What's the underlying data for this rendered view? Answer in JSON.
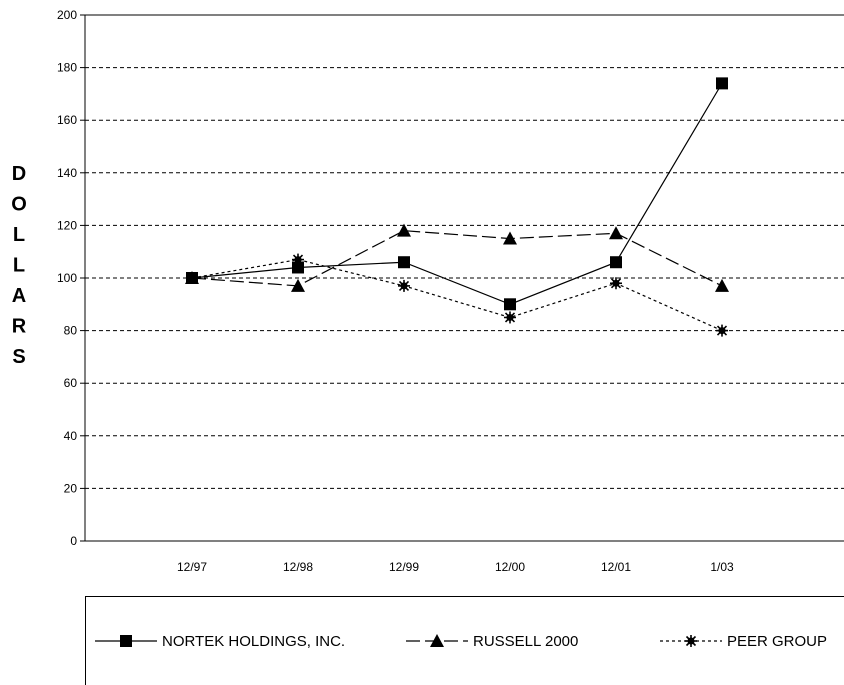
{
  "chart_data": {
    "type": "line",
    "title": "",
    "xlabel": "",
    "ylabel": "DOLLARS",
    "categories": [
      "12/97",
      "12/98",
      "12/99",
      "12/00",
      "12/01",
      "1/03"
    ],
    "ylim": [
      0,
      200
    ],
    "yticks": [
      0,
      20,
      40,
      60,
      80,
      100,
      120,
      140,
      160,
      180,
      200
    ],
    "grid": "horizontal dashed",
    "legend_position": "bottom",
    "series": [
      {
        "name": "NORTEK HOLDINGS, INC.",
        "marker": "square",
        "line": "solid",
        "values": [
          100,
          104,
          106,
          90,
          106,
          174
        ]
      },
      {
        "name": "RUSSELL 2000",
        "marker": "triangle",
        "line": "long-dash",
        "values": [
          100,
          97,
          118,
          115,
          117,
          97
        ]
      },
      {
        "name": "PEER GROUP",
        "marker": "asterisk",
        "line": "dotted",
        "values": [
          100,
          107,
          97,
          85,
          98,
          80
        ]
      }
    ]
  }
}
